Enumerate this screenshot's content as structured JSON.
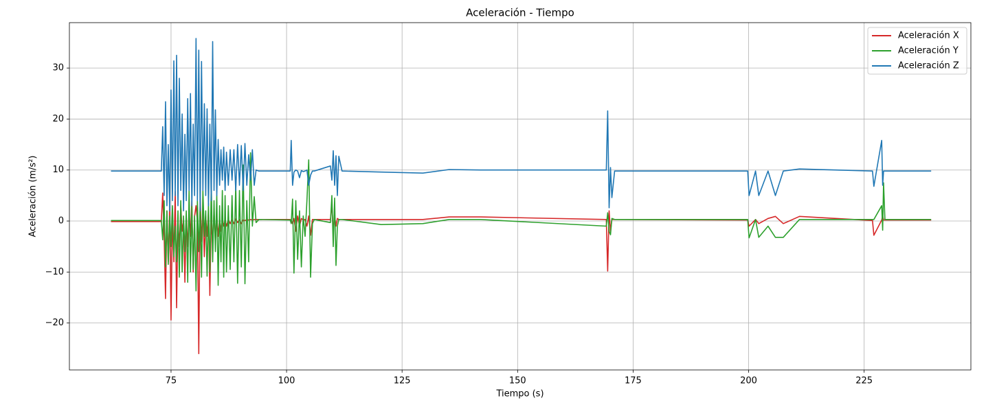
{
  "chart_data": {
    "type": "line",
    "title": "Aceleración - Tiempo",
    "x_label": "Tiempo (s)",
    "y_label": "Aceleración (m/s²)",
    "x": [
      62,
      72.9,
      73.2,
      73.5,
      73.8,
      74.1,
      74.4,
      74.7,
      75.0,
      75.3,
      75.6,
      75.9,
      76.2,
      76.5,
      76.8,
      77.1,
      77.4,
      77.7,
      78.0,
      78.3,
      78.6,
      78.9,
      79.2,
      79.5,
      79.8,
      80.1,
      80.4,
      80.7,
      81.0,
      81.3,
      81.6,
      81.9,
      82.2,
      82.5,
      82.8,
      83.1,
      83.4,
      83.7,
      84.0,
      84.3,
      84.6,
      84.9,
      85.2,
      85.5,
      85.8,
      86.1,
      86.4,
      86.7,
      87.0,
      87.4,
      87.8,
      88.2,
      88.6,
      89.0,
      89.4,
      89.8,
      90.2,
      90.6,
      91.0,
      91.4,
      91.8,
      92.2,
      92.6,
      93.0,
      93.4,
      94,
      100.8,
      101.0,
      101.3,
      101.6,
      102.0,
      102.4,
      102.8,
      103.2,
      103.6,
      104.0,
      104.4,
      104.8,
      105.2,
      105.6,
      106,
      109.5,
      109.8,
      110.1,
      110.4,
      110.7,
      111.0,
      111.3,
      112,
      120.5,
      129.5,
      135.2,
      142,
      169.2,
      169.5,
      169.8,
      170.1,
      170.4,
      171,
      199.8,
      200.1,
      201.5,
      202.2,
      204.2,
      205.8,
      207.5,
      211,
      226.8,
      227.1,
      228.8,
      229.0,
      229.2,
      229.5,
      239.5
    ],
    "series": [
      {
        "name": "Aceleración X",
        "color": "#d62728",
        "values": [
          -0.1,
          -0.1,
          5.5,
          -3,
          -15.2,
          2,
          -8,
          3,
          -19.4,
          1,
          -8,
          5.8,
          -17,
          0,
          -5,
          3,
          -2,
          0,
          -12,
          1,
          -5,
          2,
          -3,
          4,
          -10,
          1,
          3,
          0,
          -26,
          4.5,
          -4,
          2,
          -7,
          1,
          -3,
          2,
          -14.6,
          1,
          -5,
          2,
          -4,
          1,
          -3,
          0.5,
          -2,
          0.5,
          -1,
          0.2,
          -1,
          0.3,
          -0.5,
          0.2,
          -0.5,
          0.4,
          -0.3,
          0.3,
          -0.5,
          0.2,
          0.1,
          0.3,
          0.2,
          0.3,
          0.2,
          0.3,
          0.3,
          0.3,
          0.3,
          0.2,
          -0.5,
          0.5,
          -2,
          1,
          -1,
          0.5,
          0.2,
          0.3,
          -1,
          1,
          -2.8,
          0.3,
          0.3,
          0.3,
          3.2,
          -2,
          1,
          -1,
          0.5,
          0.3,
          0.3,
          0.3,
          0.3,
          0.8,
          0.8,
          0.3,
          -9.8,
          2,
          -2,
          0.3,
          0.3,
          0.2,
          -1,
          0.3,
          -0.5,
          0.5,
          0.9,
          -0.5,
          0.9,
          0.1,
          -2.8,
          0.2,
          1,
          0.2,
          0.2,
          0.2
        ]
      },
      {
        "name": "Aceleración Y",
        "color": "#2ca02c",
        "values": [
          0.1,
          0.1,
          -3.7,
          4,
          -9,
          2,
          -8.5,
          1,
          -5,
          3,
          -7,
          -1,
          -8,
          2,
          -11,
          4,
          -10,
          1,
          -6,
          2,
          -12,
          6,
          -10,
          3,
          -9.5,
          1,
          -13.7,
          4,
          -6,
          3,
          -11,
          6,
          -3,
          2,
          -10.8,
          3.5,
          -10,
          7,
          -8,
          4,
          -6,
          5,
          -12.6,
          3,
          -8,
          6,
          -11,
          5,
          -10,
          3,
          -9.5,
          5,
          -8,
          7,
          -12.2,
          6,
          -9,
          11,
          -12.3,
          4,
          -8,
          13.4,
          -1,
          4.8,
          -0.3,
          0.3,
          0.2,
          -0.5,
          4.3,
          -10.2,
          4,
          -7.5,
          2,
          -9,
          1,
          -3,
          4,
          12,
          -11,
          -0.5,
          0.3,
          -0.3,
          5,
          -5,
          4.5,
          -8.7,
          -1,
          0.3,
          0.3,
          -0.7,
          -0.5,
          0.3,
          0.3,
          -1,
          1.6,
          -2,
          -2.7,
          0.5,
          0.3,
          0.3,
          -3.3,
          0.3,
          -3.2,
          -1,
          -3.2,
          -3.2,
          0.3,
          0.3,
          0.3,
          3,
          -1.8,
          7.5,
          0.3,
          0.3
        ]
      },
      {
        "name": "Aceleración Z",
        "color": "#1f77b4",
        "values": [
          9.8,
          9.8,
          18.5,
          5,
          23.4,
          3,
          15,
          2,
          25.7,
          4,
          31.4,
          5,
          32.5,
          3,
          28,
          6,
          21,
          2,
          17,
          4,
          24,
          6,
          25,
          3,
          19,
          5,
          35.8,
          4,
          33.5,
          2,
          31.3,
          6,
          23,
          5,
          22,
          3,
          19,
          4,
          35.2,
          6,
          21.8,
          5,
          16,
          7,
          14,
          8,
          14.5,
          6,
          13.5,
          7,
          14,
          8,
          14,
          6,
          15,
          7,
          14.8,
          6,
          15.2,
          7,
          13,
          8,
          14,
          7,
          10,
          9.8,
          9.8,
          15.8,
          7,
          9.6,
          10,
          9.8,
          8.5,
          9.9,
          9.7,
          9.8,
          10,
          7,
          9,
          9.8,
          9.8,
          10.8,
          8,
          13.8,
          7,
          12.8,
          5,
          12.7,
          9.8,
          9.6,
          9.4,
          10.1,
          10,
          10,
          21.6,
          2.6,
          10.5,
          4.6,
          9.8,
          9.8,
          5,
          9.8,
          5,
          9.8,
          5,
          9.8,
          10.2,
          9.8,
          6.8,
          15.8,
          7,
          9.8,
          9.8,
          9.8
        ]
      }
    ],
    "xlim": [
      53.0,
      248.1
    ],
    "ylim": [
      -29.2,
      38.9
    ],
    "xticks": [
      75,
      100,
      125,
      150,
      175,
      200,
      225
    ],
    "yticks": [
      {
        "value": -20,
        "label": "−20"
      },
      {
        "value": -10,
        "label": "−10"
      },
      0,
      10,
      20,
      30
    ],
    "grid": true,
    "legend": "upper right"
  }
}
